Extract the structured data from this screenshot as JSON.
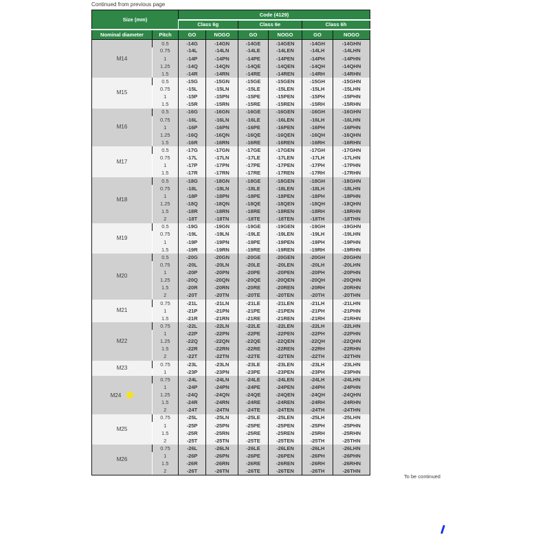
{
  "notes": {
    "top": "Continued from previous page",
    "bottom": "To be continued"
  },
  "colors": {
    "header_green": "#2e8746",
    "group_shade_dark": "#d0d0d0",
    "group_shade_light": "#f2f2f2",
    "text_dark": "#3a3a3a",
    "marker_yellow": "#f4e31d",
    "pen_mark_blue": "#2331e8"
  },
  "table": {
    "size_header": "Size (mm)",
    "code_header": "Code (4129)",
    "classes": [
      "Class 6g",
      "Class 6e",
      "Class 6h"
    ],
    "nominal_header": "Nominal diameter",
    "pitch_header": "Pitch",
    "go_header": "GO",
    "nogo_header": "NOGO",
    "groups": [
      {
        "diameter": "M14",
        "marker": false,
        "rows": [
          {
            "pitch": "0.5",
            "codes": [
              "-14G",
              "-14GN",
              "-14GE",
              "-14GEN",
              "-14GH",
              "-14GHN"
            ]
          },
          {
            "pitch": "0.75",
            "codes": [
              "-14L",
              "-14LN",
              "-14LE",
              "-14LEN",
              "-14LH",
              "-14LHN"
            ]
          },
          {
            "pitch": "1",
            "codes": [
              "-14P",
              "-14PN",
              "-14PE",
              "-14PEN",
              "-14PH",
              "-14PHN"
            ]
          },
          {
            "pitch": "1.25",
            "codes": [
              "-14Q",
              "-14QN",
              "-14QE",
              "-14QEN",
              "-14QH",
              "-14QHN"
            ]
          },
          {
            "pitch": "1.5",
            "codes": [
              "-14R",
              "-14RN",
              "-14RE",
              "-14REN",
              "-14RH",
              "-14RHN"
            ]
          }
        ]
      },
      {
        "diameter": "M15",
        "marker": false,
        "rows": [
          {
            "pitch": "0.5",
            "codes": [
              "-15G",
              "-15GN",
              "-15GE",
              "-15GEN",
              "-15GH",
              "-15GHN"
            ]
          },
          {
            "pitch": "0.75",
            "codes": [
              "-15L",
              "-15LN",
              "-15LE",
              "-15LEN",
              "-15LH",
              "-15LHN"
            ]
          },
          {
            "pitch": "1",
            "codes": [
              "-15P",
              "-15PN",
              "-15PE",
              "-15PEN",
              "-15PH",
              "-15PHN"
            ]
          },
          {
            "pitch": "1.5",
            "codes": [
              "-15R",
              "-15RN",
              "-15RE",
              "-15REN",
              "-15RH",
              "-15RHN"
            ]
          }
        ]
      },
      {
        "diameter": "M16",
        "marker": false,
        "rows": [
          {
            "pitch": "0.5",
            "codes": [
              "-16G",
              "-16GN",
              "-16GE",
              "-16GEN",
              "-16GH",
              "-16GHN"
            ]
          },
          {
            "pitch": "0.75",
            "codes": [
              "-16L",
              "-16LN",
              "-16LE",
              "-16LEN",
              "-16LH",
              "-16LHN"
            ]
          },
          {
            "pitch": "1",
            "codes": [
              "-16P",
              "-16PN",
              "-16PE",
              "-16PEN",
              "-16PH",
              "-16PHN"
            ]
          },
          {
            "pitch": "1.25",
            "codes": [
              "-16Q",
              "-16QN",
              "-16QE",
              "-16QEN",
              "-16QH",
              "-16QHN"
            ]
          },
          {
            "pitch": "1.5",
            "codes": [
              "-16R",
              "-16RN",
              "-16RE",
              "-16REN",
              "-16RH",
              "-16RHN"
            ]
          }
        ]
      },
      {
        "diameter": "M17",
        "marker": false,
        "rows": [
          {
            "pitch": "0.5",
            "codes": [
              "-17G",
              "-17GN",
              "-17GE",
              "-17GEN",
              "-17GH",
              "-17GHN"
            ]
          },
          {
            "pitch": "0.75",
            "codes": [
              "-17L",
              "-17LN",
              "-17LE",
              "-17LEN",
              "-17LH",
              "-17LHN"
            ]
          },
          {
            "pitch": "1",
            "codes": [
              "-17P",
              "-17PN",
              "-17PE",
              "-17PEN",
              "-17PH",
              "-17PHN"
            ]
          },
          {
            "pitch": "1.5",
            "codes": [
              "-17R",
              "-17RN",
              "-17RE",
              "-17REN",
              "-17RH",
              "-17RHN"
            ]
          }
        ]
      },
      {
        "diameter": "M18",
        "marker": false,
        "rows": [
          {
            "pitch": "0.5",
            "codes": [
              "-18G",
              "-18GN",
              "-18GE",
              "-18GEN",
              "-18GH",
              "-18GHN"
            ]
          },
          {
            "pitch": "0.75",
            "codes": [
              "-18L",
              "-18LN",
              "-18LE",
              "-18LEN",
              "-18LH",
              "-18LHN"
            ]
          },
          {
            "pitch": "1",
            "codes": [
              "-18P",
              "-18PN",
              "-18PE",
              "-18PEN",
              "-18PH",
              "-18PHN"
            ]
          },
          {
            "pitch": "1.25",
            "codes": [
              "-18Q",
              "-18QN",
              "-18QE",
              "-18QEN",
              "-18QH",
              "-18QHN"
            ]
          },
          {
            "pitch": "1.5",
            "codes": [
              "-18R",
              "-18RN",
              "-18RE",
              "-18REN",
              "-18RH",
              "-18RHN"
            ]
          },
          {
            "pitch": "2",
            "codes": [
              "-18T",
              "-18TN",
              "-18TE",
              "-18TEN",
              "-18TH",
              "-18THN"
            ]
          }
        ]
      },
      {
        "diameter": "M19",
        "marker": false,
        "rows": [
          {
            "pitch": "0.5",
            "codes": [
              "-19G",
              "-19GN",
              "-19GE",
              "-19GEN",
              "-19GH",
              "-19GHN"
            ]
          },
          {
            "pitch": "0.75",
            "codes": [
              "-19L",
              "-19LN",
              "-19LE",
              "-19LEN",
              "-19LH",
              "-19LHN"
            ]
          },
          {
            "pitch": "1",
            "codes": [
              "-19P",
              "-19PN",
              "-19PE",
              "-19PEN",
              "-19PH",
              "-19PHN"
            ]
          },
          {
            "pitch": "1.5",
            "codes": [
              "-19R",
              "-19RN",
              "-19RE",
              "-19REN",
              "-19RH",
              "-19RHN"
            ]
          }
        ]
      },
      {
        "diameter": "M20",
        "marker": false,
        "rows": [
          {
            "pitch": "0.5",
            "codes": [
              "-20G",
              "-20GN",
              "-20GE",
              "-20GEN",
              "-20GH",
              "-20GHN"
            ]
          },
          {
            "pitch": "0.75",
            "codes": [
              "-20L",
              "-20LN",
              "-20LE",
              "-20LEN",
              "-20LH",
              "-20LHN"
            ]
          },
          {
            "pitch": "1",
            "codes": [
              "-20P",
              "-20PN",
              "-20PE",
              "-20PEN",
              "-20PH",
              "-20PHN"
            ]
          },
          {
            "pitch": "1.25",
            "codes": [
              "-20Q",
              "-20QN",
              "-20QE",
              "-20QEN",
              "-20QH",
              "-20QHN"
            ]
          },
          {
            "pitch": "1.5",
            "codes": [
              "-20R",
              "-20RN",
              "-20RE",
              "-20REN",
              "-20RH",
              "-20RHN"
            ]
          },
          {
            "pitch": "2",
            "codes": [
              "-20T",
              "-20TN",
              "-20TE",
              "-20TEN",
              "-20TH",
              "-20THN"
            ]
          }
        ]
      },
      {
        "diameter": "M21",
        "marker": false,
        "rows": [
          {
            "pitch": "0.75",
            "codes": [
              "-21L",
              "-21LN",
              "-21LE",
              "-21LEN",
              "-21LH",
              "-21LHN"
            ]
          },
          {
            "pitch": "1",
            "codes": [
              "-21P",
              "-21PN",
              "-21PE",
              "-21PEN",
              "-21PH",
              "-21PHN"
            ]
          },
          {
            "pitch": "1.5",
            "codes": [
              "-21R",
              "-21RN",
              "-21RE",
              "-21REN",
              "-21RH",
              "-21RHN"
            ]
          }
        ]
      },
      {
        "diameter": "M22",
        "marker": false,
        "rows": [
          {
            "pitch": "0.75",
            "codes": [
              "-22L",
              "-22LN",
              "-22LE",
              "-22LEN",
              "-22LH",
              "-22LHN"
            ]
          },
          {
            "pitch": "1",
            "codes": [
              "-22P",
              "-22PN",
              "-22PE",
              "-22PEN",
              "-22PH",
              "-22PHN"
            ]
          },
          {
            "pitch": "1.25",
            "codes": [
              "-22Q",
              "-22QN",
              "-22QE",
              "-22QEN",
              "-22QH",
              "-22QHN"
            ]
          },
          {
            "pitch": "1.5",
            "codes": [
              "-22R",
              "-22RN",
              "-22RE",
              "-22REN",
              "-22RH",
              "-22RHN"
            ]
          },
          {
            "pitch": "2",
            "codes": [
              "-22T",
              "-22TN",
              "-22TE",
              "-22TEN",
              "-22TH",
              "-22THN"
            ]
          }
        ]
      },
      {
        "diameter": "M23",
        "marker": false,
        "rows": [
          {
            "pitch": "0.75",
            "codes": [
              "-23L",
              "-23LN",
              "-23LE",
              "-23LEN",
              "-23LH",
              "-23LHN"
            ]
          },
          {
            "pitch": "1",
            "codes": [
              "-23P",
              "-23PN",
              "-23PE",
              "-23PEN",
              "-23PH",
              "-23PHN"
            ]
          }
        ]
      },
      {
        "diameter": "M24",
        "marker": true,
        "rows": [
          {
            "pitch": "0.75",
            "codes": [
              "-24L",
              "-24LN",
              "-24LE",
              "-24LEN",
              "-24LH",
              "-24LHN"
            ]
          },
          {
            "pitch": "1",
            "codes": [
              "-24P",
              "-24PN",
              "-24PE",
              "-24PEN",
              "-24PH",
              "-24PHN"
            ]
          },
          {
            "pitch": "1.25",
            "codes": [
              "-24Q",
              "-24QN",
              "-24QE",
              "-24QEN",
              "-24QH",
              "-24QHN"
            ]
          },
          {
            "pitch": "1.5",
            "codes": [
              "-24R",
              "-24RN",
              "-24RE",
              "-24REN",
              "-24RH",
              "-24RHN"
            ]
          },
          {
            "pitch": "2",
            "codes": [
              "-24T",
              "-24TN",
              "-24TE",
              "-24TEN",
              "-24TH",
              "-24THN"
            ]
          }
        ]
      },
      {
        "diameter": "M25",
        "marker": false,
        "rows": [
          {
            "pitch": "0.75",
            "codes": [
              "-25L",
              "-25LN",
              "-25LE",
              "-25LEN",
              "-25LH",
              "-25LHN"
            ]
          },
          {
            "pitch": "1",
            "codes": [
              "-25P",
              "-25PN",
              "-25PE",
              "-25PEN",
              "-25PH",
              "-25PHN"
            ]
          },
          {
            "pitch": "1.5",
            "codes": [
              "-25R",
              "-25RN",
              "-25RE",
              "-25REN",
              "-25RH",
              "-25RHN"
            ]
          },
          {
            "pitch": "2",
            "codes": [
              "-25T",
              "-25TN",
              "-25TE",
              "-25TEN",
              "-25TH",
              "-25THN"
            ]
          }
        ]
      },
      {
        "diameter": "M26",
        "marker": false,
        "rows": [
          {
            "pitch": "0.75",
            "codes": [
              "-26L",
              "-26LN",
              "-26LE",
              "-26LEN",
              "-26LH",
              "-26LHN"
            ]
          },
          {
            "pitch": "1",
            "codes": [
              "-26P",
              "-26PN",
              "-26PE",
              "-26PEN",
              "-26PH",
              "-26PHN"
            ]
          },
          {
            "pitch": "1.5",
            "codes": [
              "-26R",
              "-26RN",
              "-26RE",
              "-26REN",
              "-26RH",
              "-26RHN"
            ]
          },
          {
            "pitch": "2",
            "codes": [
              "-26T",
              "-26TN",
              "-26TE",
              "-26TEN",
              "-26TH",
              "-26THN"
            ]
          }
        ]
      }
    ]
  }
}
